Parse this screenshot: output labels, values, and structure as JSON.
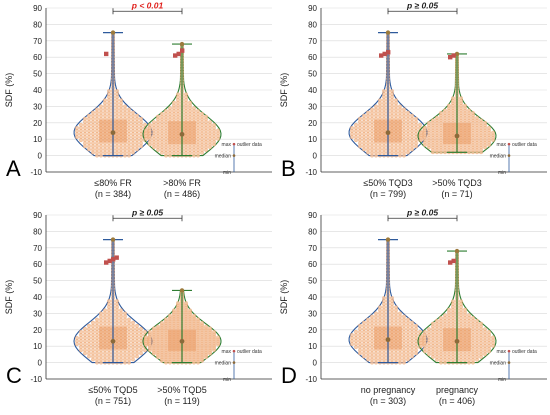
{
  "colors": {
    "blue": "#2e5a9c",
    "green": "#2e7d32",
    "orange_fill": "#f6c7a3",
    "orange_stroke": "#e8955a",
    "outlier": "#c0504d",
    "red_text": "#e0201c",
    "median": "#8b6a3a",
    "mean_marker": "#9c7a3c"
  },
  "chart_data": [
    {
      "type": "violin",
      "panel_letter": "A",
      "ylabel": "SDF (%)",
      "ylim": [
        -10,
        90
      ],
      "yticks": [
        -10,
        0,
        10,
        20,
        30,
        40,
        50,
        60,
        70,
        80,
        90
      ],
      "grid": "horizontal",
      "categories": [
        "≤80% FR",
        ">80% FR"
      ],
      "category_n": [
        "(n = 384)",
        "(n = 486)"
      ],
      "comparison_label": "p < 0.01",
      "comparison_significant": true,
      "series": [
        {
          "category": "≤80% FR",
          "min": 0,
          "q1": 8,
          "median": 14,
          "q3": 22,
          "max": 75,
          "outliers": [
            62
          ],
          "violin_color": "blue"
        },
        {
          "category": ">80% FR",
          "min": 0,
          "q1": 7,
          "median": 13,
          "q3": 21,
          "max": 68,
          "outliers": [
            61,
            62,
            64
          ],
          "violin_color": "green"
        }
      ],
      "legend": {
        "max": "max",
        "outlier": "outlier data",
        "median": "median",
        "min": "min"
      }
    },
    {
      "type": "violin",
      "panel_letter": "B",
      "ylabel": "SDF (%)",
      "ylim": [
        -10,
        90
      ],
      "yticks": [
        -10,
        0,
        10,
        20,
        30,
        40,
        50,
        60,
        70,
        80,
        90
      ],
      "grid": "horizontal",
      "categories": [
        "≤50% TQD3",
        ">50% TQD3"
      ],
      "category_n": [
        "(n = 799)",
        "(n = 71)"
      ],
      "comparison_label": "p ≥ 0.05",
      "comparison_significant": false,
      "series": [
        {
          "category": "≤50% TQD3",
          "min": 0,
          "q1": 8,
          "median": 14,
          "q3": 22,
          "max": 75,
          "outliers": [
            61,
            62,
            63
          ],
          "violin_color": "blue"
        },
        {
          "category": ">50% TQD3",
          "min": 2,
          "q1": 7,
          "median": 12,
          "q3": 20,
          "max": 62,
          "outliers": [
            60,
            61
          ],
          "violin_color": "green"
        }
      ],
      "legend": {
        "max": "max",
        "outlier": "outlier data",
        "median": "median",
        "min": "min"
      }
    },
    {
      "type": "violin",
      "panel_letter": "C",
      "ylabel": "SDF (%)",
      "ylim": [
        -10,
        90
      ],
      "yticks": [
        -10,
        0,
        10,
        20,
        30,
        40,
        50,
        60,
        70,
        80,
        90
      ],
      "grid": "horizontal",
      "categories": [
        "≤50% TQD5",
        ">50% TQD5"
      ],
      "category_n": [
        "(n = 751)",
        "(n = 119)"
      ],
      "comparison_label": "p ≥ 0.05",
      "comparison_significant": false,
      "series": [
        {
          "category": "≤50% TQD5",
          "min": 0,
          "q1": 8,
          "median": 13,
          "q3": 22,
          "max": 75,
          "outliers": [
            61,
            62,
            63,
            64
          ],
          "violin_color": "blue"
        },
        {
          "category": ">50% TQD5",
          "min": 0,
          "q1": 7,
          "median": 13,
          "q3": 20,
          "max": 44,
          "outliers": [],
          "violin_color": "green"
        }
      ],
      "legend": {
        "max": "max",
        "outlier": "outlier data",
        "median": "median",
        "min": "min"
      }
    },
    {
      "type": "violin",
      "panel_letter": "D",
      "ylabel": "SDF (%)",
      "ylim": [
        -10,
        90
      ],
      "yticks": [
        -10,
        0,
        10,
        20,
        30,
        40,
        50,
        60,
        70,
        80,
        90
      ],
      "grid": "horizontal",
      "categories": [
        "no pregnancy",
        "pregnancy"
      ],
      "category_n": [
        "(n = 303)",
        "(n = 406)"
      ],
      "comparison_label": "p ≥ 0.05",
      "comparison_significant": false,
      "series": [
        {
          "category": "no pregnancy",
          "min": 0,
          "q1": 8,
          "median": 14,
          "q3": 22,
          "max": 75,
          "outliers": [],
          "violin_color": "blue"
        },
        {
          "category": "pregnancy",
          "min": 0,
          "q1": 7,
          "median": 13,
          "q3": 21,
          "max": 68,
          "outliers": [
            61,
            62
          ],
          "violin_color": "green"
        }
      ],
      "legend": {
        "max": "max",
        "outlier": "outlier data",
        "median": "median",
        "min": "min"
      }
    }
  ]
}
